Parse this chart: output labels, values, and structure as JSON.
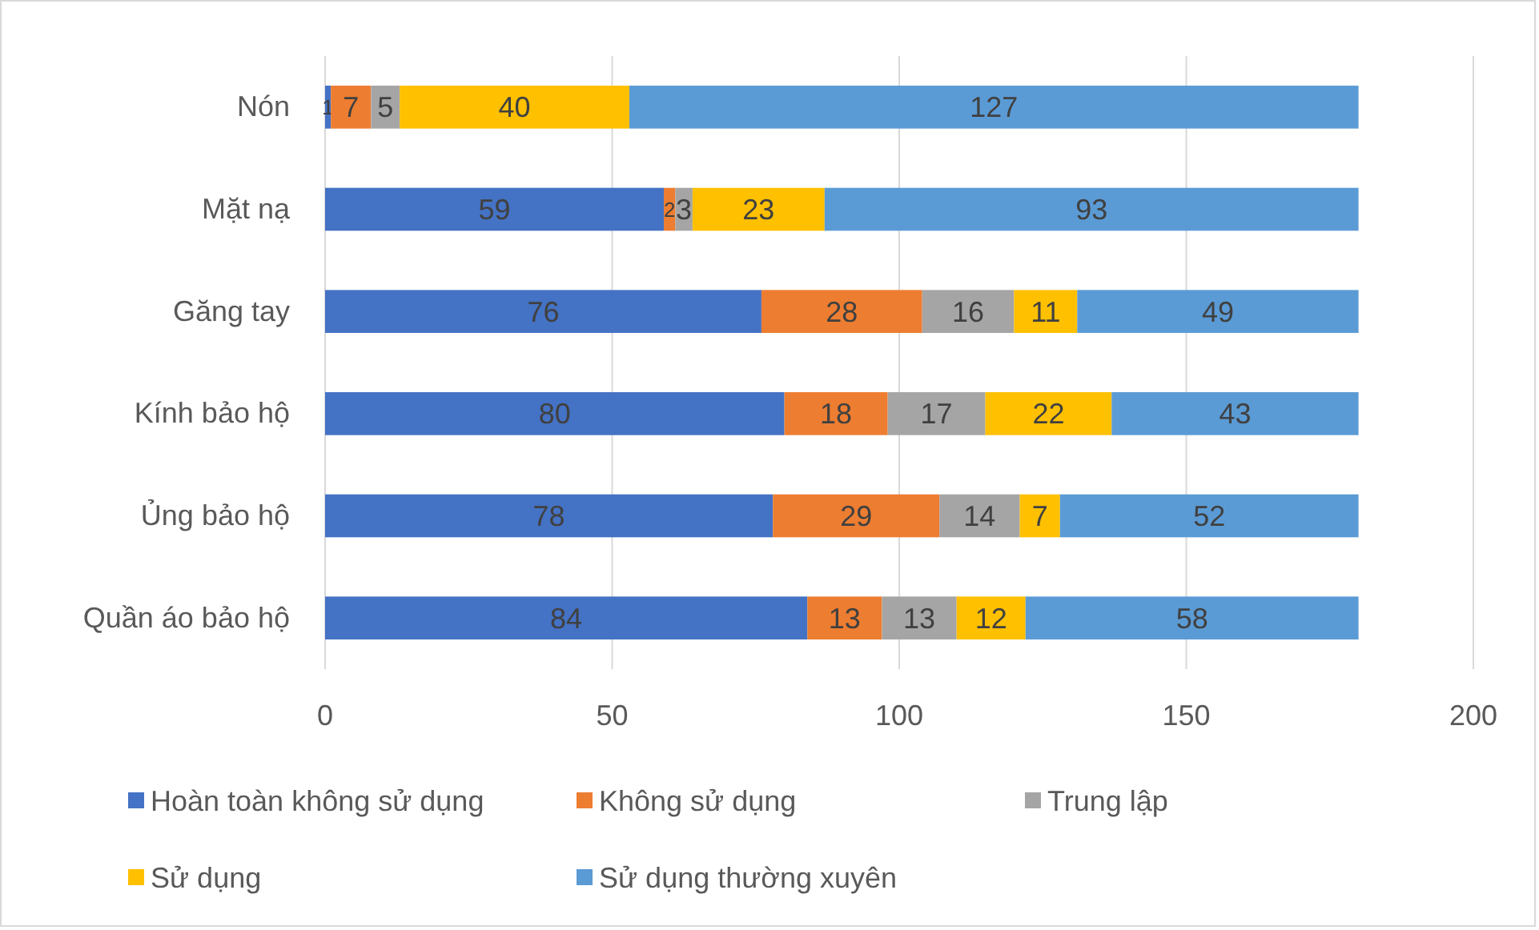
{
  "chart_data": {
    "type": "bar",
    "orientation": "horizontal",
    "stacked": true,
    "categories": [
      "Nón",
      "Mặt nạ",
      "Găng tay",
      "Kính bảo hộ",
      "Ủng bảo hộ",
      "Quần áo bảo hộ"
    ],
    "series": [
      {
        "name": "Hoàn toàn không sử dụng",
        "color": "#4472c4",
        "values": [
          1,
          59,
          76,
          80,
          78,
          84
        ]
      },
      {
        "name": "Không sử dụng",
        "color": "#ed7d31",
        "values": [
          7,
          2,
          28,
          18,
          29,
          13
        ]
      },
      {
        "name": "Trung lập",
        "color": "#a5a5a5",
        "values": [
          5,
          3,
          16,
          17,
          14,
          13
        ]
      },
      {
        "name": "Sử dụng",
        "color": "#ffc000",
        "values": [
          40,
          23,
          11,
          22,
          7,
          12
        ]
      },
      {
        "name": "Sử dụng thường xuyên",
        "color": "#5b9bd5",
        "values": [
          127,
          93,
          49,
          43,
          52,
          58
        ]
      }
    ],
    "xlim": [
      0,
      200
    ],
    "xticks": [
      0,
      50,
      100,
      150,
      200
    ],
    "grid": "x",
    "legend": "bottom",
    "data_labels": true
  }
}
